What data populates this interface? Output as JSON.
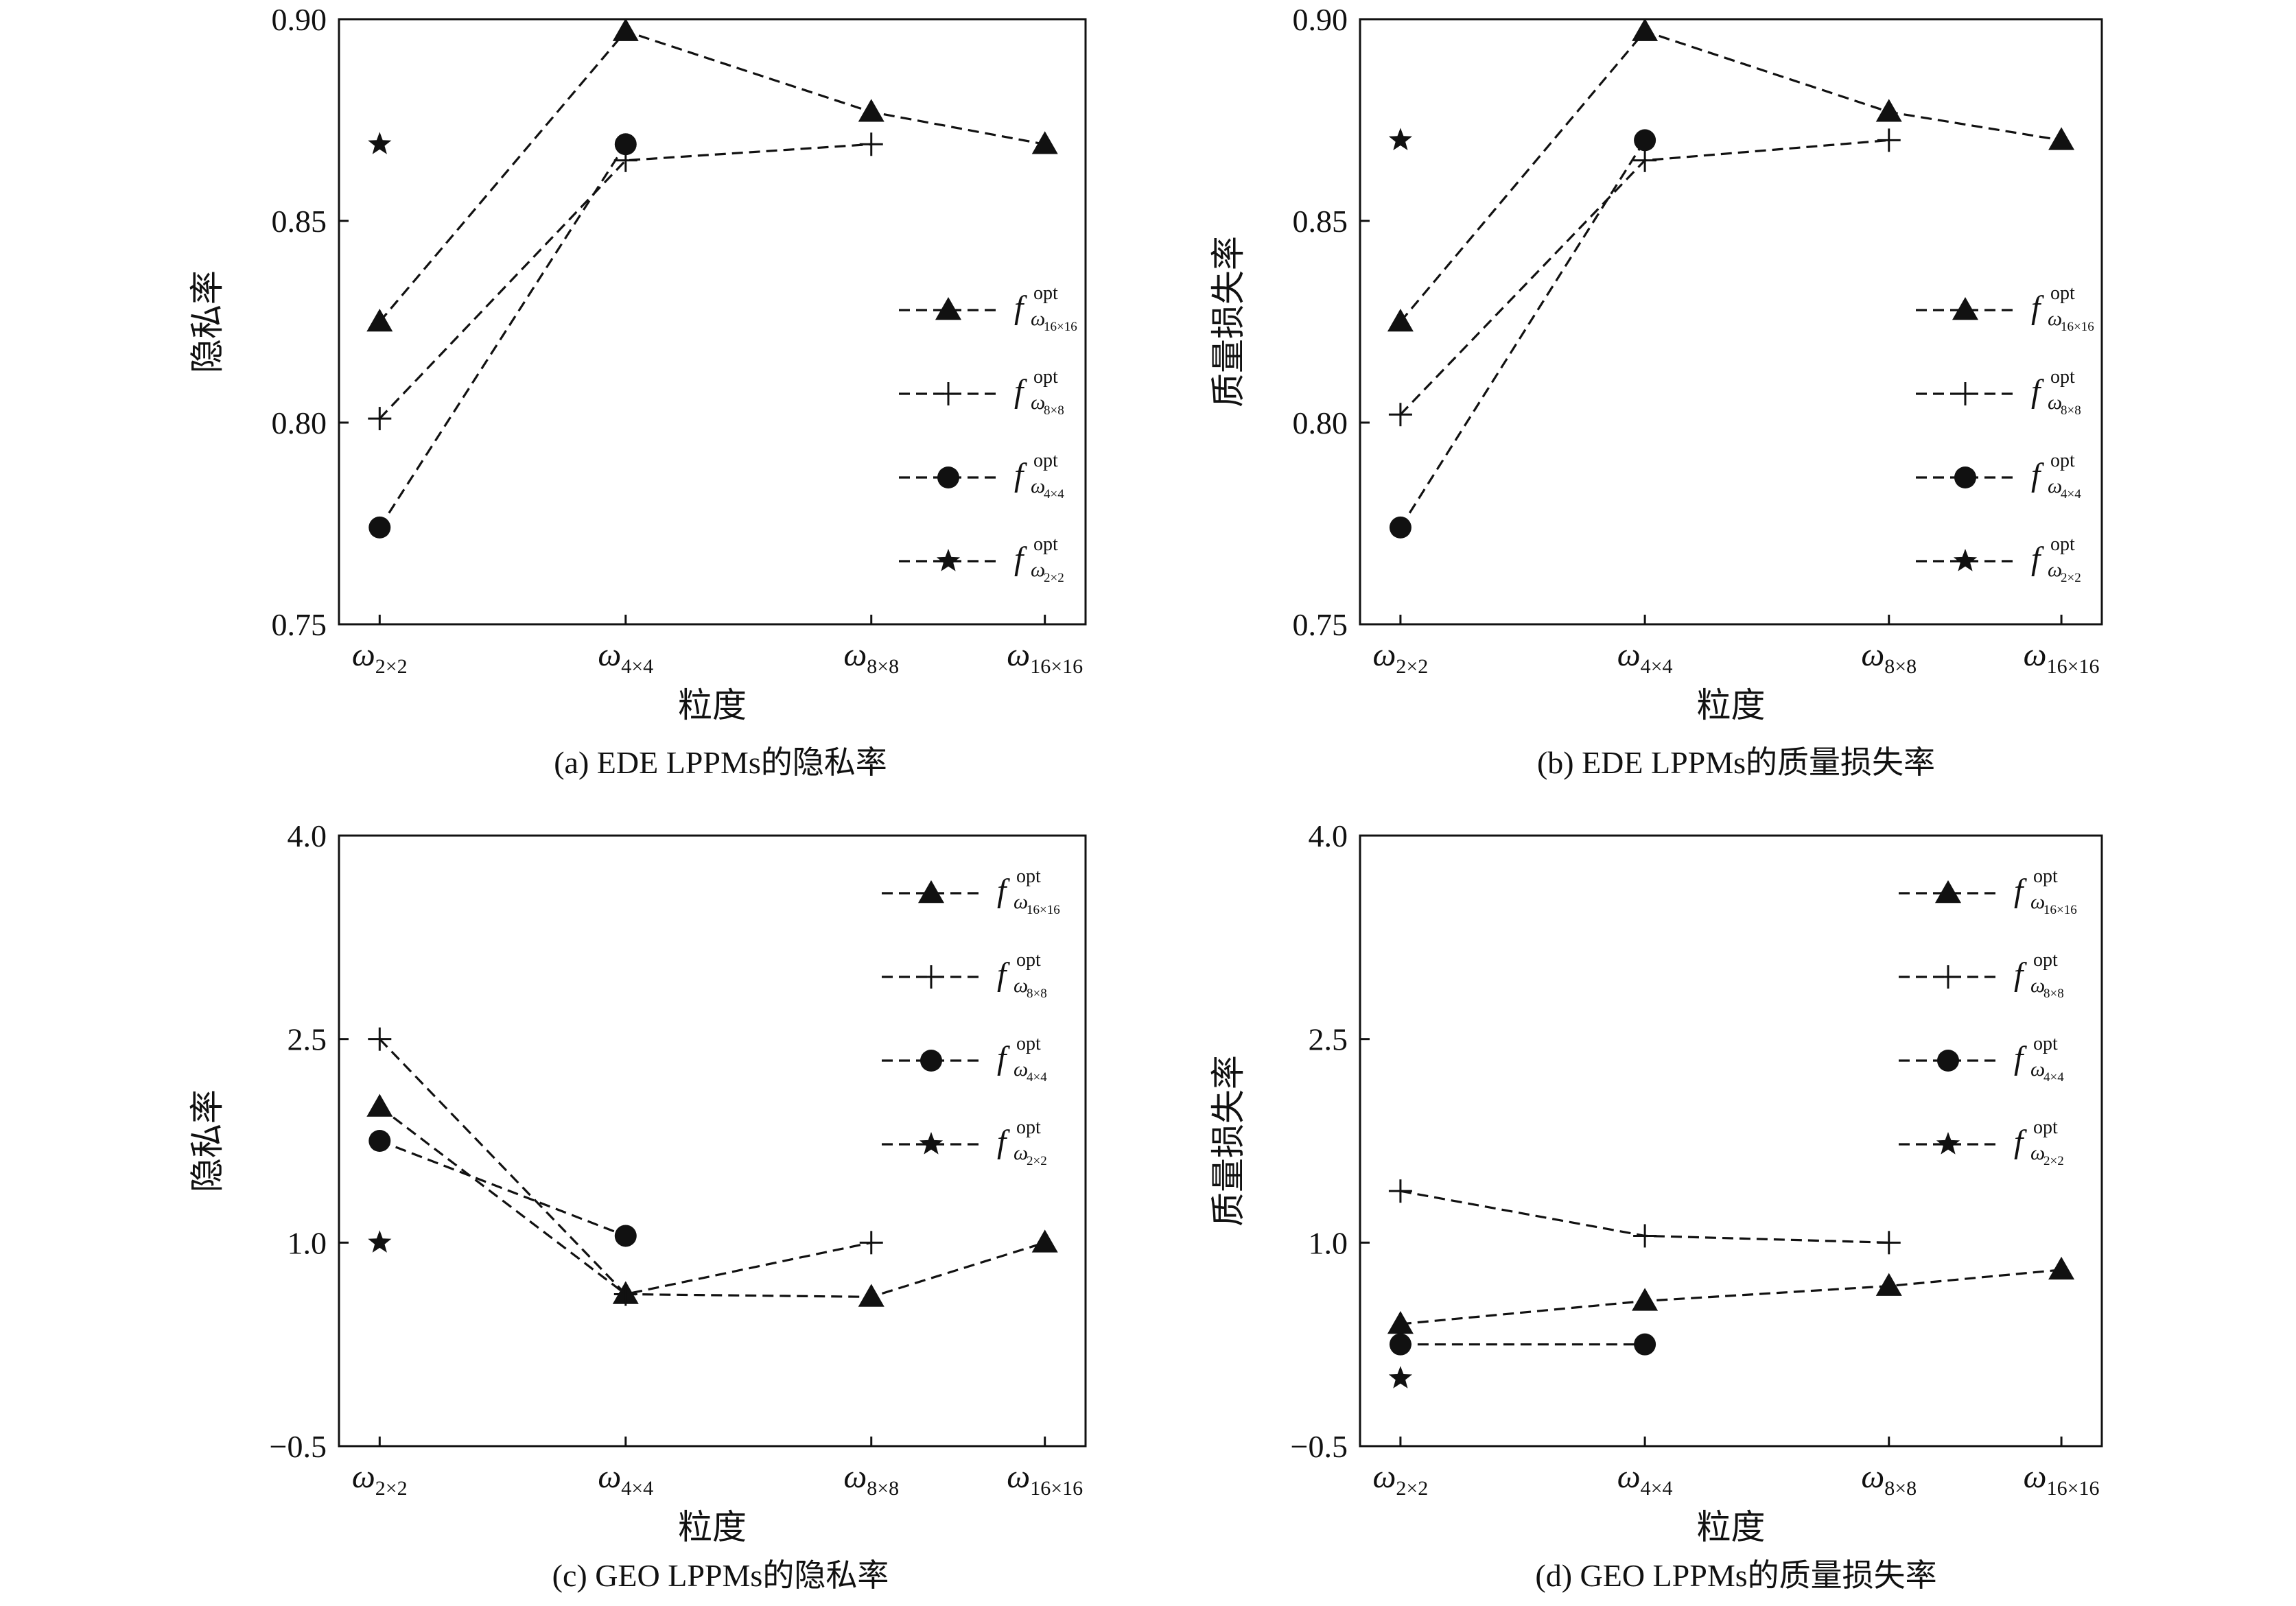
{
  "chart_data": [
    {
      "type": "line",
      "panel_id": "a",
      "caption": "(a)  EDE LPPMs的隐私率",
      "xlabel": "粒度",
      "ylabel": "隐私率",
      "categories": [
        "2×2",
        "4×4",
        "8×8",
        "16×16"
      ],
      "ylim": [
        0.75,
        0.9
      ],
      "yticks": [
        "0.75",
        "0.80",
        "0.85",
        "0.90"
      ],
      "legend_position": "right",
      "series": [
        {
          "name": "16×16",
          "marker": "triangle",
          "values": [
            0.825,
            0.897,
            0.877,
            0.869
          ]
        },
        {
          "name": "8×8",
          "marker": "plus",
          "values": [
            0.801,
            0.865,
            0.869,
            null
          ]
        },
        {
          "name": "4×4",
          "marker": "circle",
          "values": [
            0.774,
            0.869,
            null,
            null
          ]
        },
        {
          "name": "2×2",
          "marker": "star",
          "values": [
            0.869,
            null,
            null,
            null
          ]
        }
      ]
    },
    {
      "type": "line",
      "panel_id": "b",
      "caption": "(b)  EDE LPPMs的质量损失率",
      "xlabel": "粒度",
      "ylabel": "质量损失率",
      "categories": [
        "2×2",
        "4×4",
        "8×8",
        "16×16"
      ],
      "ylim": [
        0.75,
        0.9
      ],
      "yticks": [
        "0.75",
        "0.80",
        "0.85",
        "0.90"
      ],
      "legend_position": "right",
      "series": [
        {
          "name": "16×16",
          "marker": "triangle",
          "values": [
            0.825,
            0.897,
            0.877,
            0.87
          ]
        },
        {
          "name": "8×8",
          "marker": "plus",
          "values": [
            0.802,
            0.865,
            0.87,
            null
          ]
        },
        {
          "name": "4×4",
          "marker": "circle",
          "values": [
            0.774,
            0.87,
            null,
            null
          ]
        },
        {
          "name": "2×2",
          "marker": "star",
          "values": [
            0.87,
            null,
            null,
            null
          ]
        }
      ]
    },
    {
      "type": "line",
      "panel_id": "c",
      "caption": "(c)  GEO LPPMs的隐私率",
      "xlabel": "粒度",
      "ylabel": "隐私率",
      "categories": [
        "2×2",
        "4×4",
        "8×8",
        "16×16"
      ],
      "ylim": [
        -0.5,
        4.0
      ],
      "yticks": [
        "−0.5",
        "1.0",
        "2.5",
        "4.0"
      ],
      "legend_position": "top-right",
      "series": [
        {
          "name": "16×16",
          "marker": "triangle",
          "values": [
            2.0,
            0.62,
            0.6,
            1.0
          ]
        },
        {
          "name": "8×8",
          "marker": "plus",
          "values": [
            2.5,
            0.62,
            1.0,
            null
          ]
        },
        {
          "name": "4×4",
          "marker": "circle",
          "values": [
            1.75,
            1.05,
            null,
            null
          ]
        },
        {
          "name": "2×2",
          "marker": "star",
          "values": [
            1.0,
            null,
            null,
            null
          ]
        }
      ]
    },
    {
      "type": "line",
      "panel_id": "d",
      "caption": "(d)  GEO LPPMs的质量损失率",
      "xlabel": "粒度",
      "ylabel": "质量损失率",
      "categories": [
        "2×2",
        "4×4",
        "8×8",
        "16×16"
      ],
      "ylim": [
        -0.5,
        4.0
      ],
      "yticks": [
        "−0.5",
        "1.0",
        "2.5",
        "4.0"
      ],
      "legend_position": "top-right",
      "series": [
        {
          "name": "16×16",
          "marker": "triangle",
          "values": [
            0.4,
            0.57,
            0.68,
            0.8
          ]
        },
        {
          "name": "8×8",
          "marker": "plus",
          "values": [
            1.38,
            1.05,
            1.0,
            null
          ]
        },
        {
          "name": "4×4",
          "marker": "circle",
          "values": [
            0.25,
            0.25,
            null,
            null
          ]
        },
        {
          "name": "2×2",
          "marker": "star",
          "values": [
            0.0,
            null,
            null,
            null
          ]
        }
      ]
    }
  ],
  "legend_sup": "opt",
  "legend_f": "f",
  "omega": "ω"
}
